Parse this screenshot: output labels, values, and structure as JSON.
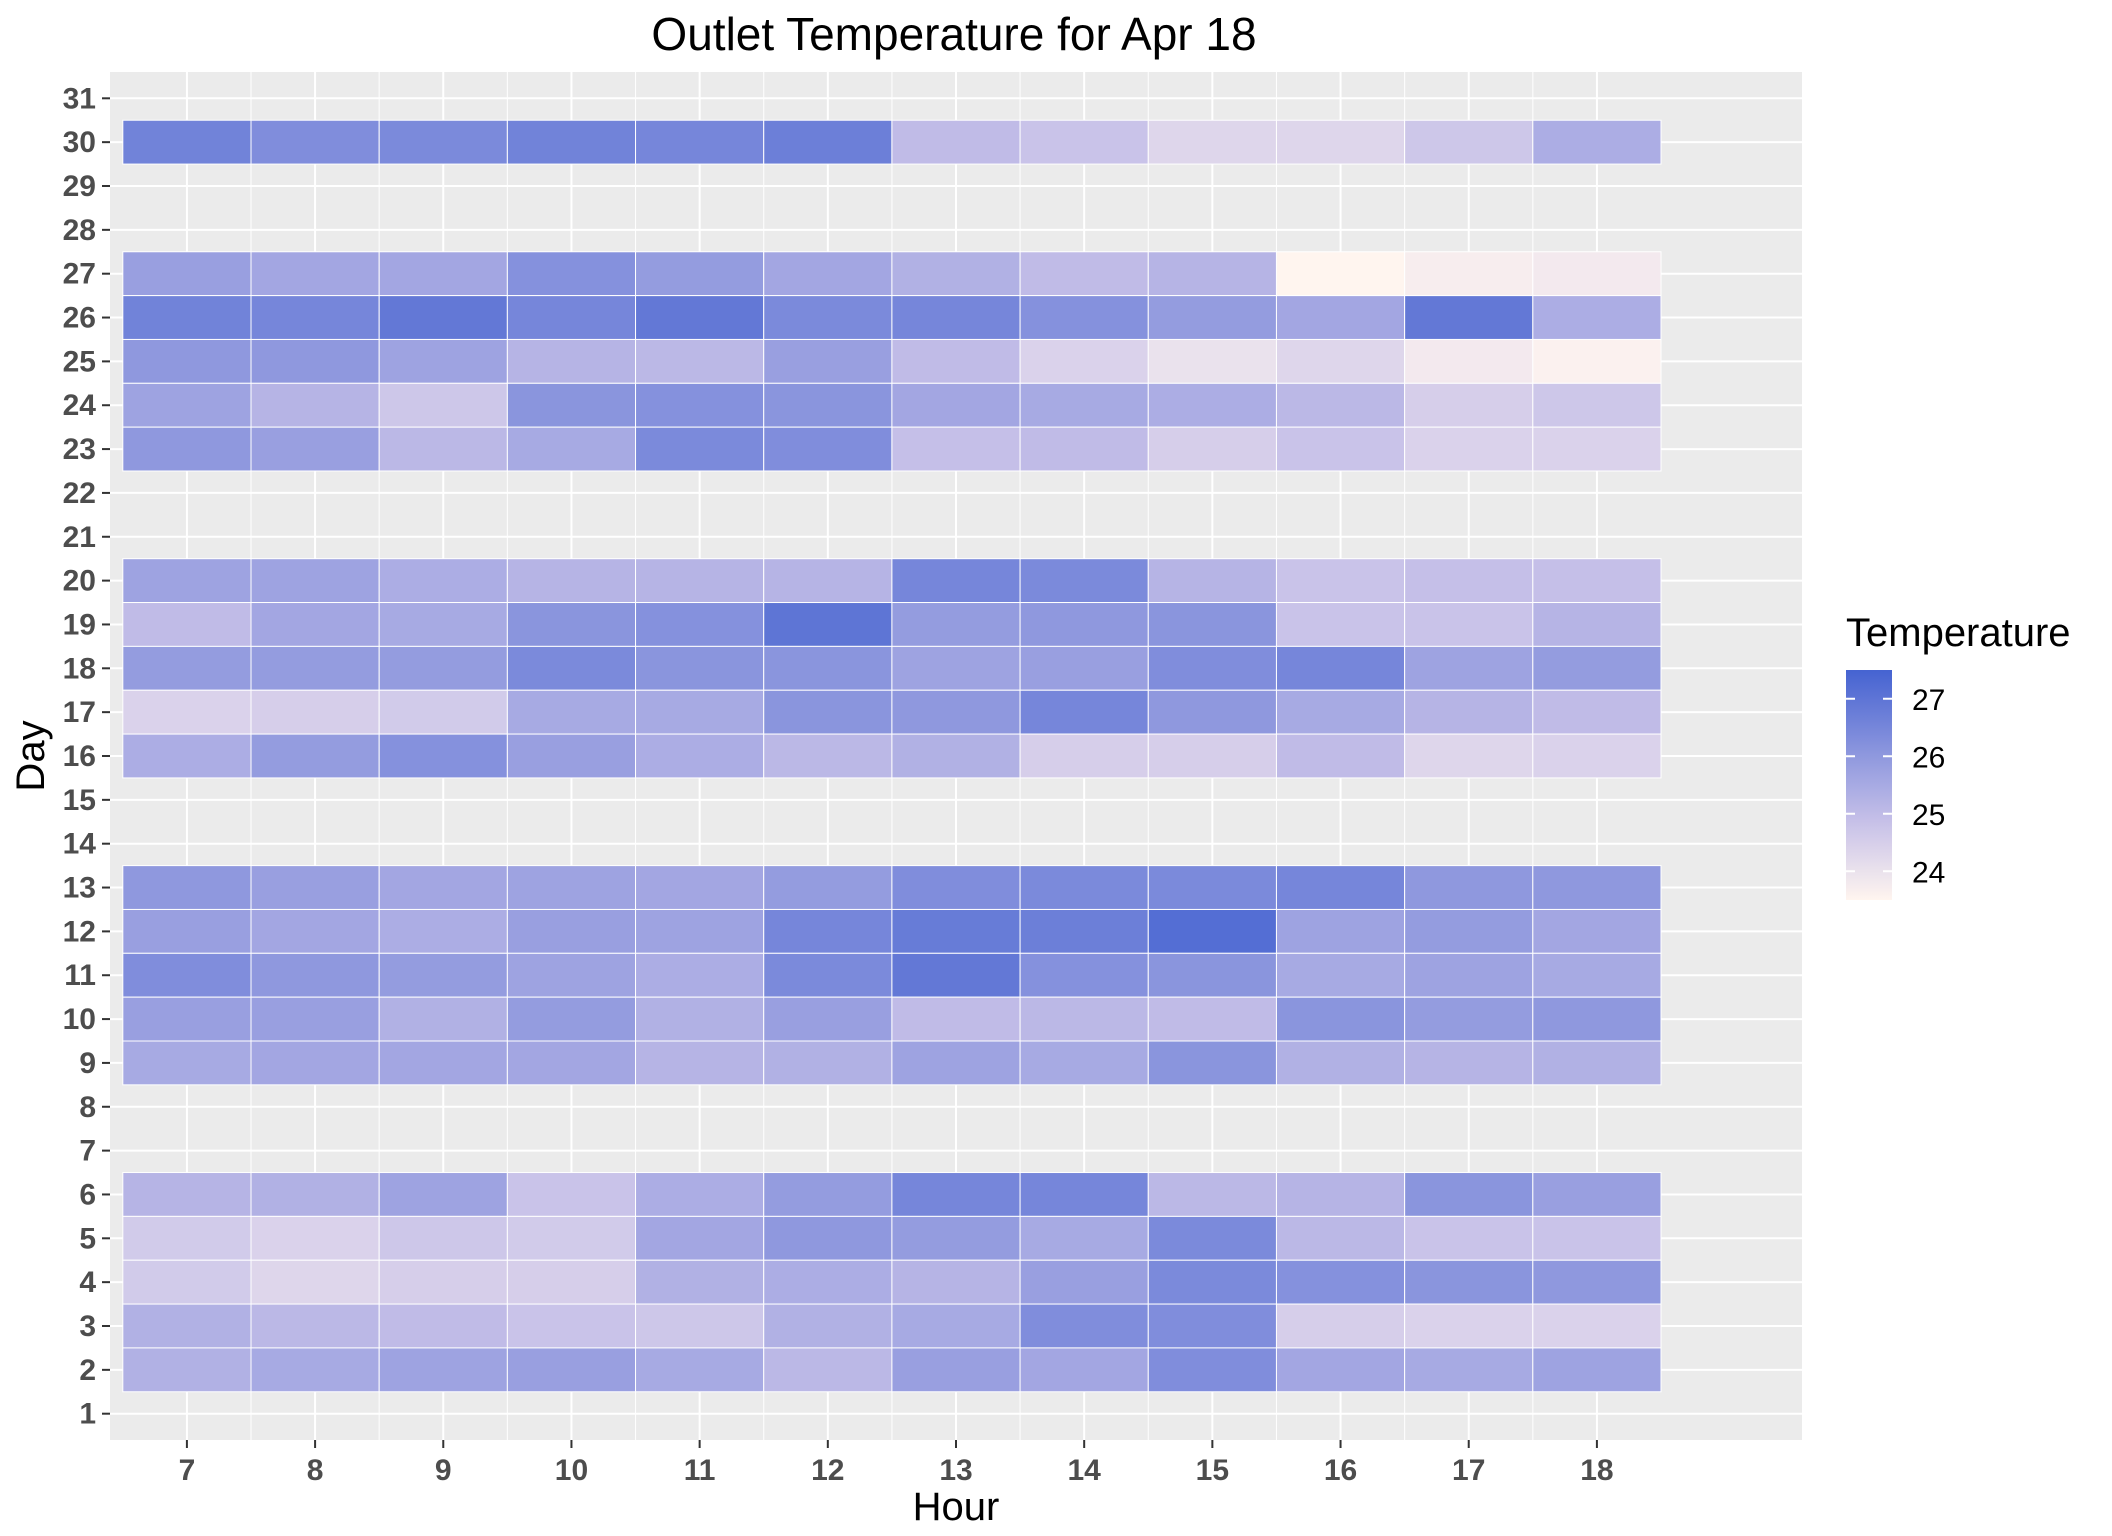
{
  "chart_data": {
    "type": "heatmap",
    "title": "Outlet Temperature for Apr 18",
    "xlabel": "Hour",
    "ylabel": "Day",
    "x_ticks": [
      7,
      8,
      9,
      10,
      11,
      12,
      13,
      14,
      15,
      16,
      17,
      18
    ],
    "y_ticks": [
      1,
      2,
      3,
      4,
      5,
      6,
      7,
      8,
      9,
      10,
      11,
      12,
      13,
      14,
      15,
      16,
      17,
      18,
      19,
      20,
      21,
      22,
      23,
      24,
      25,
      26,
      27,
      28,
      29,
      30,
      31
    ],
    "xlim": [
      6.4,
      19.6
    ],
    "ylim": [
      0.4,
      31.6
    ],
    "grid": true,
    "legend": {
      "title": "Temperature",
      "position": "right",
      "breaks": [
        27,
        26,
        25,
        24
      ],
      "low": 23.5,
      "high": 27.5,
      "low_color": "#fff5ef",
      "high_color": "#4563d1"
    },
    "colors": {
      "panel": "#ebebeb",
      "grid": "#ffffff",
      "tile_border": "#ffffff"
    },
    "rows": [
      {
        "day": 30,
        "values": [
          26.6,
          26.3,
          26.4,
          26.6,
          26.5,
          26.7,
          25.0,
          24.8,
          24.3,
          24.3,
          24.7,
          25.4
        ]
      },
      {
        "day": 27,
        "values": [
          25.8,
          25.6,
          25.6,
          26.2,
          25.9,
          25.6,
          25.3,
          25.0,
          25.2,
          23.5,
          23.7,
          23.8
        ]
      },
      {
        "day": 26,
        "values": [
          26.6,
          26.5,
          26.9,
          26.5,
          26.9,
          26.4,
          26.5,
          26.2,
          25.9,
          25.6,
          26.9,
          25.4
        ]
      },
      {
        "day": 25,
        "values": [
          26.0,
          26.0,
          25.7,
          25.2,
          25.1,
          25.8,
          25.0,
          24.4,
          24.0,
          24.3,
          23.8,
          23.6
        ]
      },
      {
        "day": 24,
        "values": [
          25.7,
          25.2,
          24.7,
          26.1,
          26.2,
          26.1,
          25.6,
          25.5,
          25.4,
          25.1,
          24.5,
          24.7
        ]
      },
      {
        "day": 23,
        "values": [
          26.0,
          25.8,
          25.1,
          25.5,
          26.4,
          26.3,
          24.9,
          25.0,
          24.5,
          24.8,
          24.4,
          24.4
        ]
      },
      {
        "day": 20,
        "values": [
          25.7,
          25.7,
          25.4,
          25.2,
          25.2,
          25.2,
          26.5,
          26.4,
          25.2,
          24.8,
          24.9,
          24.9
        ]
      },
      {
        "day": 19,
        "values": [
          25.0,
          25.6,
          25.5,
          26.1,
          26.2,
          27.0,
          25.9,
          26.0,
          26.1,
          24.8,
          24.8,
          25.2
        ]
      },
      {
        "day": 18,
        "values": [
          25.9,
          25.9,
          25.9,
          26.4,
          26.1,
          26.1,
          25.7,
          25.8,
          26.3,
          26.5,
          25.7,
          25.9
        ]
      },
      {
        "day": 17,
        "values": [
          24.4,
          24.5,
          24.6,
          25.5,
          25.5,
          26.1,
          26.0,
          26.5,
          26.0,
          25.5,
          25.2,
          25.0
        ]
      },
      {
        "day": 16,
        "values": [
          25.4,
          25.9,
          26.2,
          25.8,
          25.4,
          25.1,
          25.3,
          24.5,
          24.5,
          25.0,
          24.3,
          24.4
        ]
      },
      {
        "day": 13,
        "values": [
          26.0,
          25.8,
          25.6,
          25.7,
          25.6,
          25.9,
          26.3,
          26.4,
          26.4,
          26.5,
          26.0,
          26.0
        ]
      },
      {
        "day": 12,
        "values": [
          25.8,
          25.6,
          25.4,
          25.8,
          25.7,
          26.5,
          26.8,
          26.7,
          27.2,
          25.7,
          25.9,
          25.6
        ]
      },
      {
        "day": 11,
        "values": [
          26.3,
          26.0,
          25.9,
          25.7,
          25.4,
          26.4,
          26.9,
          26.2,
          26.1,
          25.5,
          25.7,
          25.5
        ]
      },
      {
        "day": 10,
        "values": [
          25.8,
          25.8,
          25.3,
          25.9,
          25.3,
          25.8,
          25.0,
          25.1,
          25.0,
          26.1,
          25.9,
          26.0
        ]
      },
      {
        "day": 9,
        "values": [
          25.5,
          25.6,
          25.6,
          25.6,
          25.2,
          25.3,
          25.7,
          25.5,
          26.1,
          25.3,
          25.2,
          25.3
        ]
      },
      {
        "day": 6,
        "values": [
          25.2,
          25.3,
          25.7,
          24.8,
          25.4,
          25.9,
          26.5,
          26.5,
          25.1,
          25.2,
          26.1,
          25.8
        ]
      },
      {
        "day": 5,
        "values": [
          24.6,
          24.4,
          24.7,
          24.6,
          25.6,
          26.0,
          25.9,
          25.5,
          26.4,
          25.1,
          24.8,
          24.8
        ]
      },
      {
        "day": 4,
        "values": [
          24.6,
          24.3,
          24.5,
          24.5,
          25.3,
          25.4,
          25.2,
          25.8,
          26.4,
          26.2,
          26.1,
          26.0
        ]
      },
      {
        "day": 3,
        "values": [
          25.3,
          25.1,
          25.0,
          24.8,
          24.7,
          25.3,
          25.5,
          26.3,
          26.3,
          24.5,
          24.4,
          24.4
        ]
      },
      {
        "day": 2,
        "values": [
          25.3,
          25.5,
          25.7,
          25.8,
          25.5,
          25.1,
          25.8,
          25.6,
          26.3,
          25.6,
          25.5,
          25.7
        ]
      }
    ]
  }
}
